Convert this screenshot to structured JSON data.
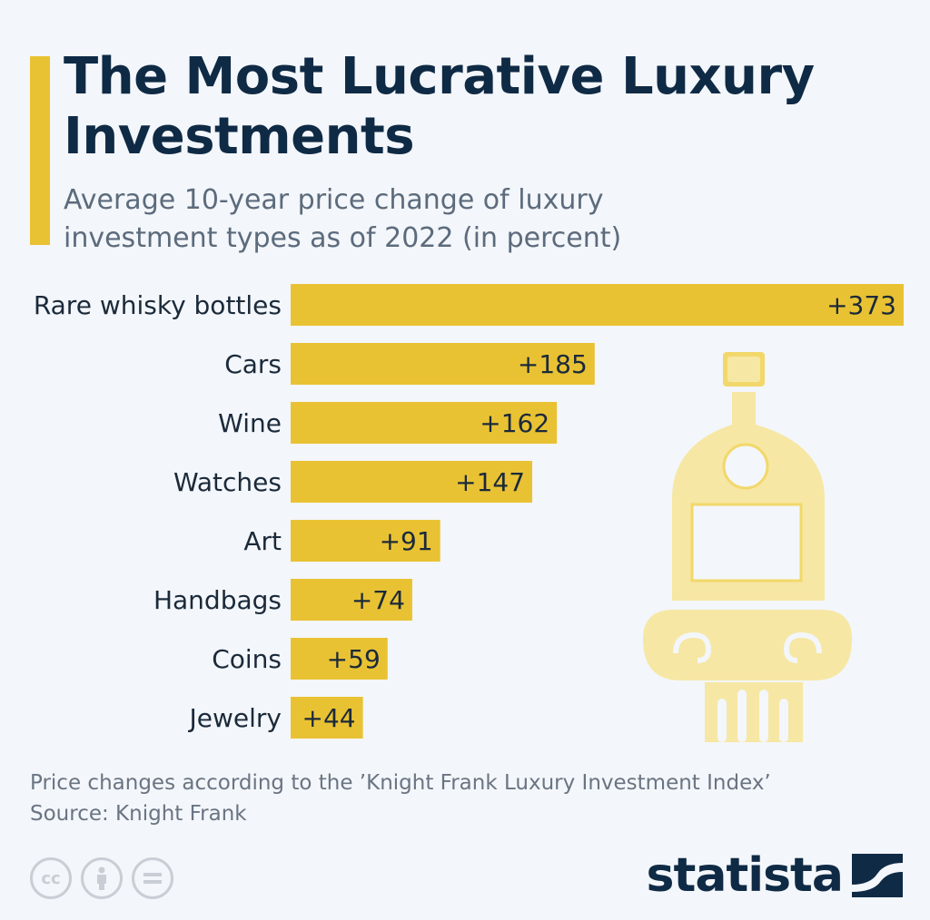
{
  "header": {
    "title": "The Most Lucrative Luxury Investments",
    "subtitle": "Average 10-year price change of luxury investment types as of 2022 (in percent)"
  },
  "chart_data": {
    "type": "bar",
    "orientation": "horizontal",
    "categories": [
      "Rare whisky bottles",
      "Cars",
      "Wine",
      "Watches",
      "Art",
      "Handbags",
      "Coins",
      "Jewelry"
    ],
    "values": [
      373,
      185,
      162,
      147,
      91,
      74,
      59,
      44
    ],
    "value_labels": [
      "+373",
      "+185",
      "+162",
      "+147",
      "+91",
      "+74",
      "+59",
      "+44"
    ],
    "xlim": [
      0,
      373
    ],
    "grid": false,
    "legend": "none",
    "bar_color": "#e9c233"
  },
  "footer": {
    "note": "Price changes according to the ’Knight Frank Luxury Investment Index’",
    "source": "Source: Knight Frank",
    "logo": "statista"
  },
  "icons": {
    "license": [
      "cc-icon",
      "attribution-icon",
      "no-derivatives-icon"
    ],
    "illustration": "whisky-bottle-on-column-icon",
    "logo_mark": "statista-logo-icon"
  },
  "colors": {
    "accent": "#e9c233",
    "title": "#0f2a45",
    "illustration": "#f6e7a4"
  }
}
